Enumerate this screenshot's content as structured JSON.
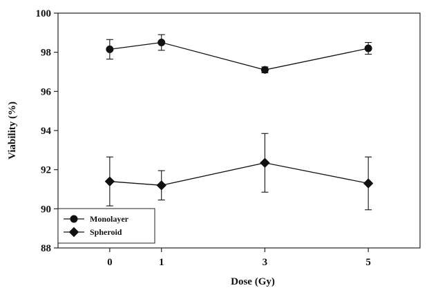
{
  "chart_data": {
    "type": "line",
    "title": "",
    "xlabel": "Dose (Gy)",
    "ylabel": "Viability (%)",
    "xlim": [
      -1,
      6
    ],
    "ylim": [
      88,
      100
    ],
    "x_ticks": [
      0,
      1,
      3,
      5
    ],
    "y_ticks": [
      88,
      90,
      92,
      94,
      96,
      98,
      100
    ],
    "grid": false,
    "legend": "bottom-left",
    "series": [
      {
        "name": "Monolayer",
        "marker": "circle",
        "color": "#111111",
        "points": [
          {
            "x": 0,
            "y": 98.15,
            "err": 0.5
          },
          {
            "x": 1,
            "y": 98.5,
            "err": 0.4
          },
          {
            "x": 3,
            "y": 97.1,
            "err": 0.15
          },
          {
            "x": 5,
            "y": 98.2,
            "err": 0.3
          }
        ]
      },
      {
        "name": "Spheroid",
        "marker": "diamond",
        "color": "#111111",
        "points": [
          {
            "x": 0,
            "y": 91.4,
            "err": 1.25
          },
          {
            "x": 1,
            "y": 91.2,
            "err": 0.75
          },
          {
            "x": 3,
            "y": 92.35,
            "err": 1.5
          },
          {
            "x": 5,
            "y": 91.3,
            "err": 1.35
          }
        ]
      }
    ]
  }
}
